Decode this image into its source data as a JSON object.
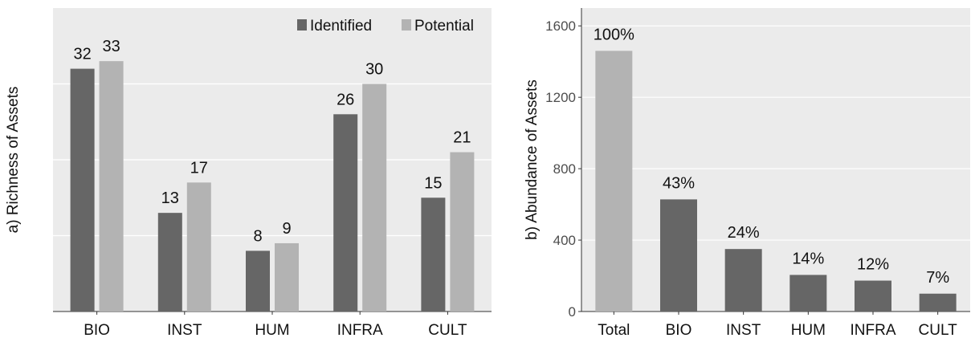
{
  "chart_data": [
    {
      "type": "bar",
      "title": "",
      "xlabel": "",
      "ylabel": "a) Richness of Assets",
      "categories": [
        "BIO",
        "INST",
        "HUM",
        "INFRA",
        "CULT"
      ],
      "ylim": [
        0,
        40
      ],
      "y_ticks_visible": false,
      "grid": true,
      "legend_position": "top-right",
      "series": [
        {
          "name": "Identified",
          "color": "#666666",
          "values": [
            32,
            13,
            8,
            26,
            15
          ]
        },
        {
          "name": "Potential",
          "color": "#b3b3b3",
          "values": [
            33,
            17,
            9,
            30,
            21
          ]
        }
      ],
      "data_labels": [
        [
          "32",
          "13",
          "8",
          "26",
          "15"
        ],
        [
          "33",
          "17",
          "9",
          "30",
          "21"
        ]
      ]
    },
    {
      "type": "bar",
      "title": "",
      "xlabel": "",
      "ylabel": "b) Abundance of Assets",
      "categories": [
        "Total",
        "BIO",
        "INST",
        "HUM",
        "INFRA",
        "CULT"
      ],
      "values": [
        1460,
        628,
        350,
        205,
        173,
        100
      ],
      "colors": [
        "#b3b3b3",
        "#666666",
        "#666666",
        "#666666",
        "#666666",
        "#666666"
      ],
      "data_labels": [
        "100%",
        "43%",
        "24%",
        "14%",
        "12%",
        "7%"
      ],
      "ylim": [
        0,
        1700
      ],
      "yticks": [
        0,
        400,
        800,
        1200,
        1600
      ],
      "ytick_labels": [
        "0",
        "400",
        "800",
        "1200",
        "1600"
      ],
      "grid": true
    }
  ]
}
